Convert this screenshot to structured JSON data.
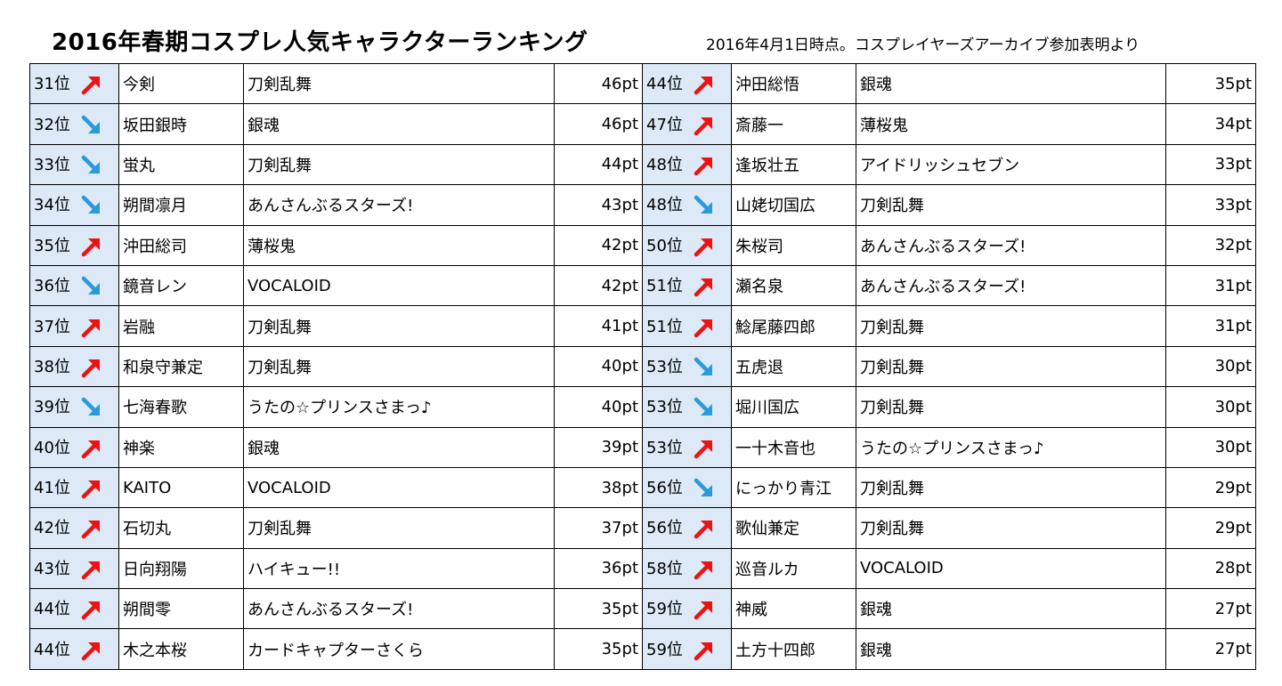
{
  "title": "2016年春期コスプレ人気キャラクターランキング",
  "subtitle": "2016年4月1日時点。コスプレイヤーズアーカイブ参加表明より",
  "colors": {
    "up": "#ee1111",
    "down": "#2a9ad8",
    "rank_bg": "#dde9f6"
  },
  "rows": [
    [
      {
        "rank": "31位",
        "trend": "up",
        "name": "今剣",
        "series": "刀剣乱舞",
        "points": "46pt"
      },
      {
        "rank": "44位",
        "trend": "up",
        "name": "沖田総悟",
        "series": "銀魂",
        "points": "35pt"
      }
    ],
    [
      {
        "rank": "32位",
        "trend": "down",
        "name": "坂田銀時",
        "series": "銀魂",
        "points": "46pt"
      },
      {
        "rank": "47位",
        "trend": "up",
        "name": "斎藤一",
        "series": "薄桜鬼",
        "points": "34pt"
      }
    ],
    [
      {
        "rank": "33位",
        "trend": "down",
        "name": "蛍丸",
        "series": "刀剣乱舞",
        "points": "44pt"
      },
      {
        "rank": "48位",
        "trend": "up",
        "name": "逢坂壮五",
        "series": "アイドリッシュセブン",
        "points": "33pt"
      }
    ],
    [
      {
        "rank": "34位",
        "trend": "down",
        "name": "朔間凛月",
        "series": "あんさんぶるスターズ!",
        "points": "43pt"
      },
      {
        "rank": "48位",
        "trend": "down",
        "name": "山姥切国広",
        "series": "刀剣乱舞",
        "points": "33pt"
      }
    ],
    [
      {
        "rank": "35位",
        "trend": "up",
        "name": "沖田総司",
        "series": "薄桜鬼",
        "points": "42pt"
      },
      {
        "rank": "50位",
        "trend": "up",
        "name": "朱桜司",
        "series": "あんさんぶるスターズ!",
        "points": "32pt"
      }
    ],
    [
      {
        "rank": "36位",
        "trend": "down",
        "name": "鏡音レン",
        "series": "VOCALOID",
        "points": "42pt"
      },
      {
        "rank": "51位",
        "trend": "up",
        "name": "瀬名泉",
        "series": "あんさんぶるスターズ!",
        "points": "31pt"
      }
    ],
    [
      {
        "rank": "37位",
        "trend": "up",
        "name": "岩融",
        "series": "刀剣乱舞",
        "points": "41pt"
      },
      {
        "rank": "51位",
        "trend": "up",
        "name": "鯰尾藤四郎",
        "series": "刀剣乱舞",
        "points": "31pt"
      }
    ],
    [
      {
        "rank": "38位",
        "trend": "up",
        "name": "和泉守兼定",
        "series": "刀剣乱舞",
        "points": "40pt"
      },
      {
        "rank": "53位",
        "trend": "down",
        "name": "五虎退",
        "series": "刀剣乱舞",
        "points": "30pt"
      }
    ],
    [
      {
        "rank": "39位",
        "trend": "down",
        "name": "七海春歌",
        "series": "うたの☆プリンスさまっ♪",
        "points": "40pt"
      },
      {
        "rank": "53位",
        "trend": "down",
        "name": "堀川国広",
        "series": "刀剣乱舞",
        "points": "30pt"
      }
    ],
    [
      {
        "rank": "40位",
        "trend": "up",
        "name": "神楽",
        "series": "銀魂",
        "points": "39pt"
      },
      {
        "rank": "53位",
        "trend": "up",
        "name": "一十木音也",
        "series": "うたの☆プリンスさまっ♪",
        "points": "30pt"
      }
    ],
    [
      {
        "rank": "41位",
        "trend": "up",
        "name": "KAITO",
        "series": "VOCALOID",
        "points": "38pt"
      },
      {
        "rank": "56位",
        "trend": "down",
        "name": "にっかり青江",
        "series": "刀剣乱舞",
        "points": "29pt"
      }
    ],
    [
      {
        "rank": "42位",
        "trend": "up",
        "name": "石切丸",
        "series": "刀剣乱舞",
        "points": "37pt"
      },
      {
        "rank": "56位",
        "trend": "up",
        "name": "歌仙兼定",
        "series": "刀剣乱舞",
        "points": "29pt"
      }
    ],
    [
      {
        "rank": "43位",
        "trend": "up",
        "name": "日向翔陽",
        "series": "ハイキュー!!",
        "points": "36pt"
      },
      {
        "rank": "58位",
        "trend": "up",
        "name": "巡音ルカ",
        "series": "VOCALOID",
        "points": "28pt"
      }
    ],
    [
      {
        "rank": "44位",
        "trend": "up",
        "name": "朔間零",
        "series": "あんさんぶるスターズ!",
        "points": "35pt"
      },
      {
        "rank": "59位",
        "trend": "up",
        "name": "神威",
        "series": "銀魂",
        "points": "27pt"
      }
    ],
    [
      {
        "rank": "44位",
        "trend": "up",
        "name": "木之本桜",
        "series": "カードキャプターさくら",
        "points": "35pt"
      },
      {
        "rank": "59位",
        "trend": "up",
        "name": "土方十四郎",
        "series": "銀魂",
        "points": "27pt"
      }
    ]
  ]
}
